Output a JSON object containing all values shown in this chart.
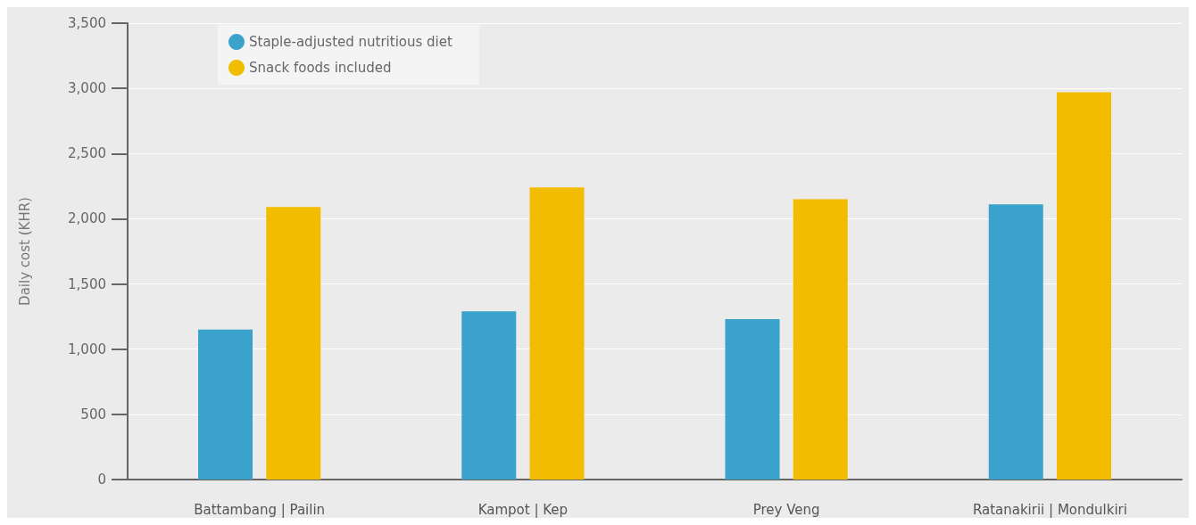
{
  "chart_data": {
    "type": "bar",
    "ylabel": "Daily cost (KHR)",
    "categories": [
      "Battambang | Pailin",
      "Kampot | Kep",
      "Prey Veng",
      "Ratanakirii | Mondulkiri"
    ],
    "series": [
      {
        "name": "Staple-adjusted nutritious diet",
        "color": "#3ba3cb",
        "values": [
          1150,
          1290,
          1230,
          2110
        ]
      },
      {
        "name": "Snack foods included",
        "color": "#f2bc00",
        "values": [
          2090,
          2240,
          2150,
          2970
        ]
      }
    ],
    "ylim": [
      0,
      3500
    ],
    "yticks": [
      {
        "value": 0,
        "label": "0"
      },
      {
        "value": 500,
        "label": "500"
      },
      {
        "value": 1000,
        "label": "1,000"
      },
      {
        "value": 1500,
        "label": "1,500"
      },
      {
        "value": 2000,
        "label": "2,000"
      },
      {
        "value": 2500,
        "label": "2,500"
      },
      {
        "value": 3000,
        "label": "3,000"
      },
      {
        "value": 3500,
        "label": "3,500"
      }
    ],
    "grid": "y",
    "legend": "top left"
  }
}
